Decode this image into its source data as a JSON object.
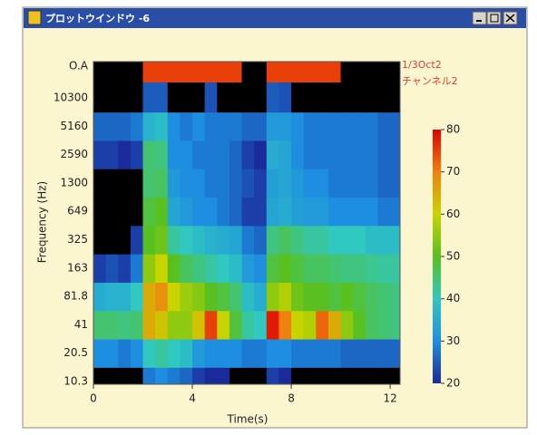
{
  "window": {
    "title": "プロットウインドウ -6"
  },
  "chart_data": {
    "type": "heatmap",
    "x_label": "Time(s)",
    "y_label": "Frequency (Hz)",
    "legend": [
      "1/3Oct2",
      "チャンネル2"
    ],
    "x": [
      0,
      0.5,
      1,
      1.5,
      2,
      2.5,
      3,
      3.5,
      4,
      4.5,
      5,
      5.5,
      6,
      6.5,
      7,
      7.5,
      8,
      8.5,
      9,
      9.5,
      10,
      10.5,
      11,
      11.5,
      12
    ],
    "xlim": [
      0,
      12.4
    ],
    "xticks": [
      0,
      4,
      8,
      12
    ],
    "categories": [
      "10.3",
      "20.5",
      "41",
      "81.8",
      "163",
      "325",
      "649",
      "1300",
      "2590",
      "5160",
      "10300",
      "O.A"
    ],
    "values": [
      [
        15,
        15,
        15,
        18,
        28,
        30,
        28,
        26,
        22,
        20,
        20,
        18,
        18,
        18,
        22,
        20,
        18,
        18,
        18,
        18,
        18,
        18,
        18,
        18,
        18
      ],
      [
        30,
        30,
        28,
        30,
        40,
        42,
        40,
        38,
        32,
        30,
        30,
        30,
        28,
        28,
        30,
        30,
        28,
        28,
        28,
        28,
        26,
        26,
        26,
        26,
        26
      ],
      [
        45,
        45,
        44,
        45,
        65,
        62,
        55,
        55,
        62,
        75,
        60,
        48,
        42,
        40,
        78,
        70,
        60,
        58,
        72,
        65,
        55,
        50,
        46,
        45,
        44
      ],
      [
        35,
        36,
        36,
        40,
        65,
        68,
        60,
        56,
        54,
        50,
        48,
        45,
        38,
        35,
        55,
        58,
        52,
        50,
        50,
        48,
        50,
        48,
        46,
        45,
        44
      ],
      [
        22,
        24,
        22,
        28,
        55,
        60,
        50,
        46,
        44,
        42,
        40,
        38,
        32,
        30,
        48,
        50,
        48,
        46,
        46,
        45,
        44,
        44,
        43,
        42,
        42
      ],
      [
        18,
        18,
        18,
        22,
        50,
        52,
        42,
        40,
        38,
        36,
        35,
        34,
        28,
        26,
        44,
        46,
        44,
        42,
        42,
        40,
        40,
        40,
        38,
        38,
        38
      ],
      [
        15,
        15,
        16,
        18,
        48,
        50,
        34,
        32,
        30,
        30,
        28,
        26,
        22,
        22,
        34,
        35,
        33,
        32,
        32,
        30,
        30,
        30,
        30,
        28,
        28
      ],
      [
        15,
        15,
        15,
        18,
        45,
        46,
        32,
        30,
        30,
        28,
        28,
        26,
        24,
        22,
        33,
        34,
        32,
        30,
        30,
        28,
        28,
        28,
        28,
        26,
        26
      ],
      [
        22,
        22,
        20,
        22,
        45,
        44,
        30,
        30,
        28,
        28,
        28,
        26,
        22,
        20,
        35,
        34,
        30,
        28,
        28,
        28,
        28,
        28,
        28,
        26,
        26
      ],
      [
        26,
        26,
        26,
        28,
        36,
        38,
        30,
        28,
        30,
        28,
        28,
        28,
        26,
        26,
        32,
        32,
        30,
        28,
        28,
        28,
        28,
        28,
        28,
        26,
        26
      ],
      [
        15,
        15,
        15,
        15,
        25,
        25,
        15,
        15,
        15,
        24,
        15,
        15,
        15,
        15,
        25,
        24,
        15,
        15,
        15,
        15,
        15,
        15,
        15,
        15,
        15
      ],
      [
        10,
        10,
        10,
        10,
        75,
        75,
        75,
        75,
        75,
        75,
        75,
        75,
        10,
        10,
        75,
        75,
        75,
        75,
        75,
        75,
        10,
        10,
        10,
        10,
        10
      ]
    ],
    "clim": [
      20,
      80
    ],
    "cticks": [
      20,
      30,
      40,
      50,
      60,
      70,
      80
    ]
  }
}
